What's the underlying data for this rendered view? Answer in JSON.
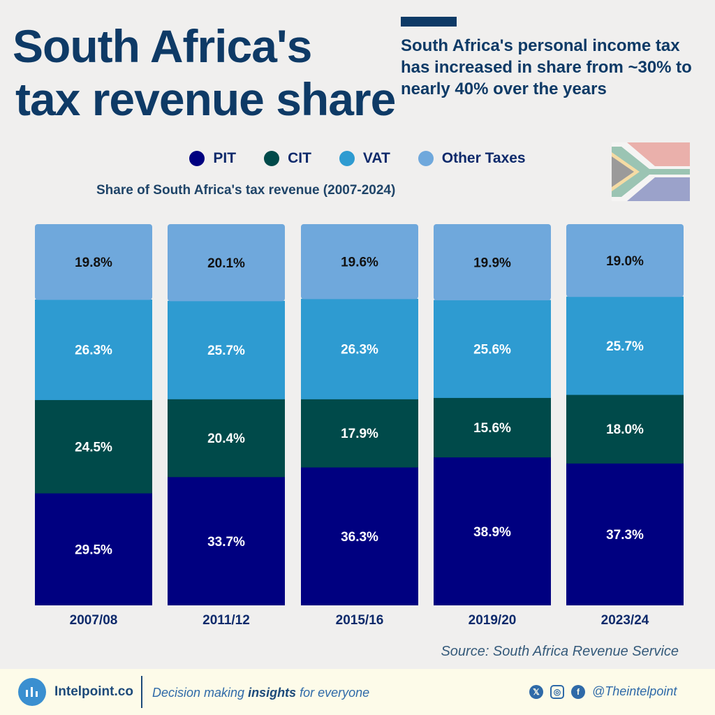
{
  "header": {
    "title_line1": "South Africa's",
    "title_line2": "tax revenue share",
    "subtitle": "South Africa's personal income tax has increased in share from ~30% to nearly 40% over the years"
  },
  "colors": {
    "PIT": "#000080",
    "CIT": "#004a4a",
    "VAT": "#2e9bd1",
    "Other Taxes": "#6fa8dc"
  },
  "chart_data": {
    "type": "bar",
    "stacked": true,
    "title": "Share of South Africa's tax revenue (2007-2024)",
    "categories": [
      "2007/08",
      "2011/12",
      "2015/16",
      "2019/20",
      "2023/24"
    ],
    "series": [
      {
        "name": "PIT",
        "values": [
          29.5,
          33.7,
          36.3,
          38.9,
          37.3
        ]
      },
      {
        "name": "CIT",
        "values": [
          24.5,
          20.4,
          17.9,
          15.6,
          18.0
        ]
      },
      {
        "name": "VAT",
        "values": [
          26.3,
          25.7,
          26.3,
          25.6,
          25.7
        ]
      },
      {
        "name": "Other Taxes",
        "values": [
          19.8,
          20.1,
          19.6,
          19.9,
          19.0
        ]
      }
    ],
    "unit": "%",
    "legend_position": "top-center",
    "grid": false
  },
  "source": "Source: South Africa Revenue Service",
  "footer": {
    "brand": "Intelpoint.co",
    "tagline_pre": "Decision making ",
    "tagline_bold": "insights",
    "tagline_post": " for everyone",
    "handle": "@Theintelpoint",
    "social_icons": [
      "x-icon",
      "instagram-icon",
      "facebook-icon"
    ]
  }
}
